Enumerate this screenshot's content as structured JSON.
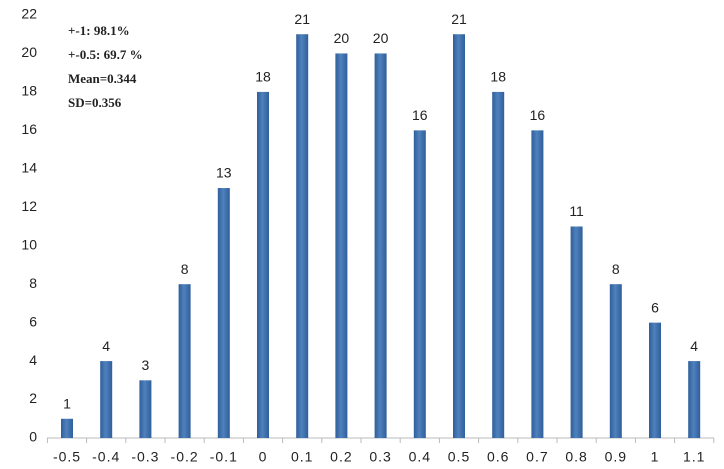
{
  "chart_data": {
    "type": "bar",
    "categories": [
      "-0.5",
      "-0.4",
      "-0.3",
      "-0.2",
      "-0.1",
      "0",
      "0.1",
      "0.2",
      "0.3",
      "0.4",
      "0.5",
      "0.6",
      "0.7",
      "0.8",
      "0.9",
      "1",
      "1.1"
    ],
    "values": [
      1,
      4,
      3,
      8,
      13,
      18,
      21,
      20,
      20,
      16,
      21,
      18,
      16,
      11,
      8,
      6,
      4
    ],
    "color": "#4f81bd",
    "ylim": [
      0,
      22
    ],
    "yticks": [
      0,
      2,
      4,
      6,
      8,
      10,
      12,
      14,
      16,
      18,
      20,
      22
    ],
    "grid": false,
    "annotations": [
      "+-1:  98.1%",
      "+-0.5: 69.7 %",
      "Mean=0.344",
      "SD=0.356"
    ]
  }
}
